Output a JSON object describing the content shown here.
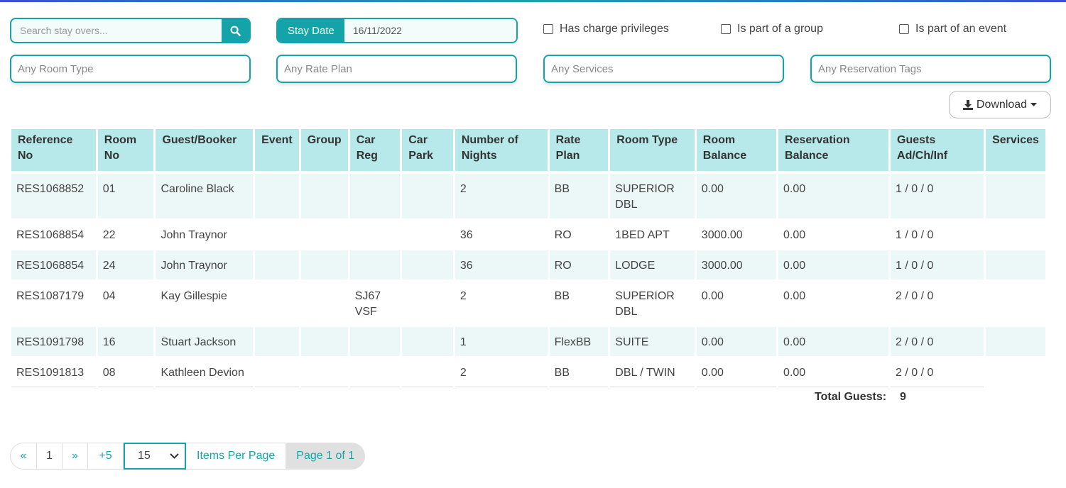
{
  "filters": {
    "search_placeholder": "Search stay overs...",
    "stay_date_label": "Stay Date",
    "stay_date_value": "16/11/2022",
    "checkboxes": [
      {
        "label": "Has charge privileges",
        "checked": false
      },
      {
        "label": "Is part of a group",
        "checked": false
      },
      {
        "label": "Is part of an event",
        "checked": false
      }
    ],
    "room_type": "Any Room Type",
    "rate_plan": "Any Rate Plan",
    "services": "Any Services",
    "reservation_tags": "Any Reservation Tags"
  },
  "download_label": "Download",
  "table": {
    "headers": [
      "Reference No",
      "Room No",
      "Guest/Booker",
      "Event",
      "Group",
      "Car Reg",
      "Car Park",
      "Number of Nights",
      "Rate Plan",
      "Room Type",
      "Room Balance",
      "Reservation Balance",
      "Guests Ad/Ch/Inf",
      "Services"
    ],
    "rows": [
      [
        "RES1068852",
        "01",
        "Caroline Black",
        "",
        "",
        "",
        "",
        "2",
        "BB",
        "SUPERIOR DBL",
        "0.00",
        "0.00",
        "1 / 0 / 0",
        ""
      ],
      [
        "RES1068854",
        "22",
        "John Traynor",
        "",
        "",
        "",
        "",
        "36",
        "RO",
        "1BED APT",
        "3000.00",
        "0.00",
        "1 / 0 / 0",
        ""
      ],
      [
        "RES1068854",
        "24",
        "John Traynor",
        "",
        "",
        "",
        "",
        "36",
        "RO",
        "LODGE",
        "3000.00",
        "0.00",
        "1 / 0 / 0",
        ""
      ],
      [
        "RES1087179",
        "04",
        "Kay Gillespie",
        "",
        "",
        "SJ67 VSF",
        "",
        "2",
        "BB",
        "SUPERIOR DBL",
        "0.00",
        "0.00",
        "2 / 0 / 0",
        ""
      ],
      [
        "RES1091798",
        "16",
        "Stuart Jackson",
        "",
        "",
        "",
        "",
        "1",
        "FlexBB",
        "SUITE",
        "0.00",
        "0.00",
        "2 / 0 / 0",
        ""
      ],
      [
        "RES1091813",
        "08",
        "Kathleen Devion",
        "",
        "",
        "",
        "",
        "2",
        "BB",
        "DBL / TWIN",
        "0.00",
        "0.00",
        "2 / 0 / 0",
        ""
      ]
    ],
    "total_label": "Total Guests:",
    "total_value": "9"
  },
  "pagination": {
    "first": "«",
    "page": "1",
    "next": "»",
    "plus": "+5",
    "per_page": "15",
    "items_per_page_label": "Items Per Page",
    "page_of": "Page 1 of 1"
  },
  "colors": {
    "accent": "#13a3a8",
    "header_bg": "#b7e9ea",
    "row_alt": "#ecf8f8"
  }
}
